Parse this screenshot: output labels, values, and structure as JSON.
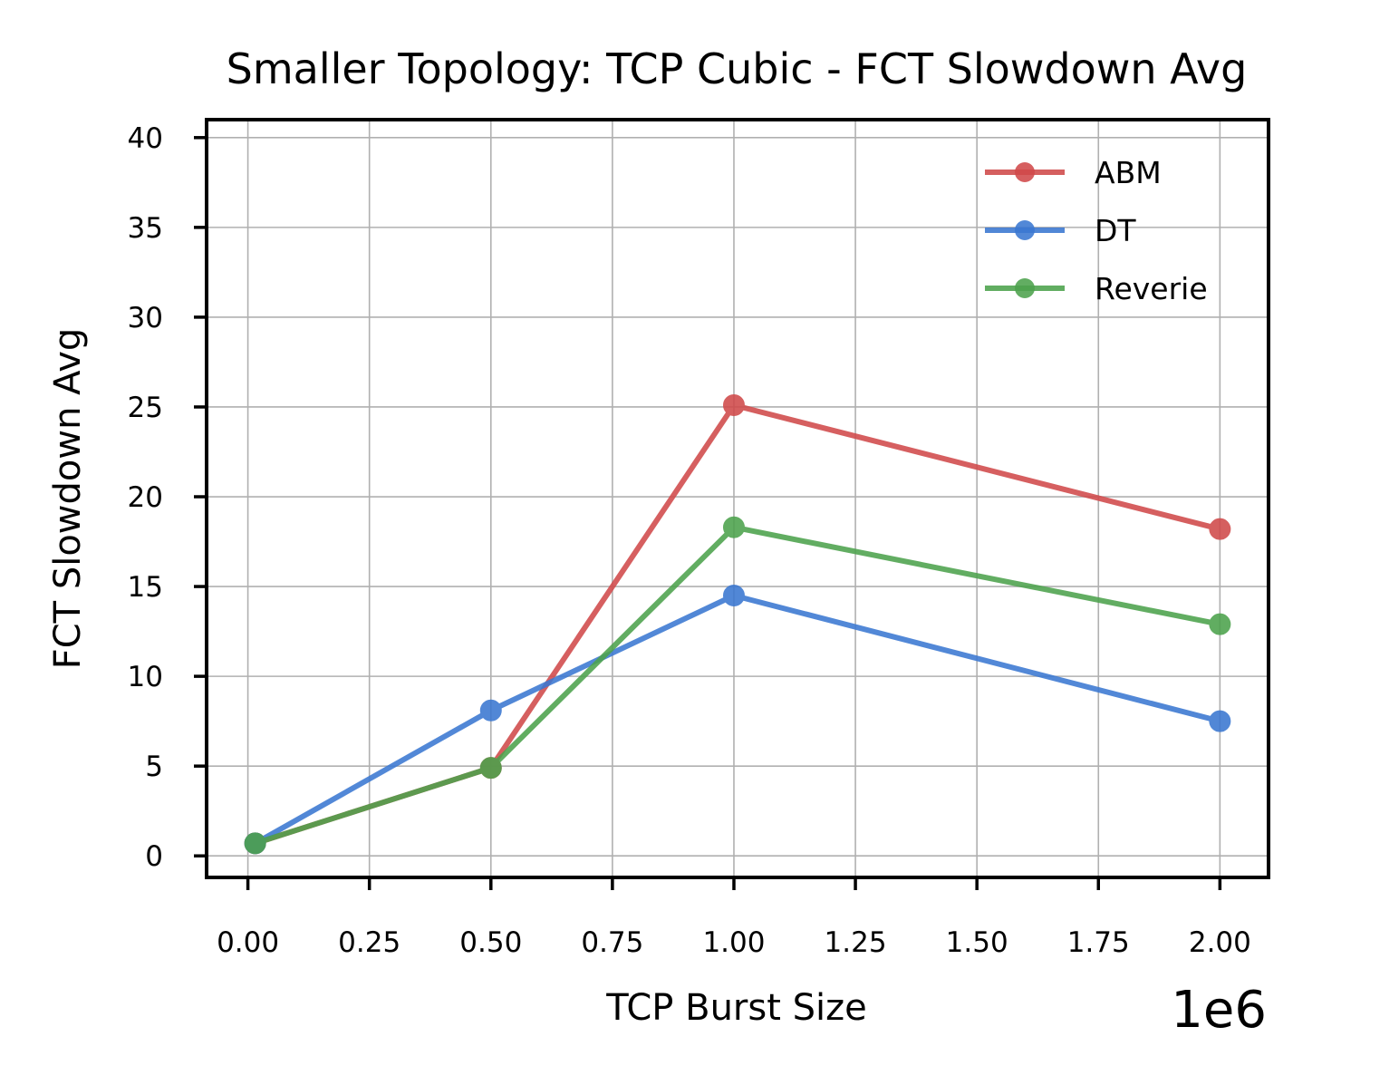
{
  "chart_data": {
    "type": "line",
    "title": "Smaller Topology: TCP Cubic - FCT Slowdown Avg",
    "xlabel": "TCP Burst Size",
    "ylabel": "FCT Slowdown Avg",
    "x_offset_text": "1e6",
    "xlim": [
      -0.085,
      2.1
    ],
    "ylim": [
      -1.2,
      41
    ],
    "xticks": [
      0.0,
      0.25,
      0.5,
      0.75,
      1.0,
      1.25,
      1.5,
      1.75,
      2.0
    ],
    "xtick_labels": [
      "0.00",
      "0.25",
      "0.50",
      "0.75",
      "1.00",
      "1.25",
      "1.50",
      "1.75",
      "2.00"
    ],
    "yticks": [
      0,
      5,
      10,
      15,
      20,
      25,
      30,
      35,
      40
    ],
    "ytick_labels": [
      "0",
      "5",
      "10",
      "15",
      "20",
      "25",
      "30",
      "35",
      "40"
    ],
    "x": [
      0.015,
      0.5,
      1.0,
      2.0
    ],
    "series": [
      {
        "name": "ABM",
        "color": "#d0494a",
        "values": [
          0.7,
          4.9,
          25.1,
          18.2
        ]
      },
      {
        "name": "DT",
        "color": "#3a77d1",
        "values": [
          0.7,
          8.1,
          14.5,
          7.5
        ]
      },
      {
        "name": "Reverie",
        "color": "#4ca24c",
        "values": [
          0.7,
          4.9,
          18.3,
          12.9
        ]
      }
    ],
    "grid": true,
    "legend_position": "top-right"
  }
}
